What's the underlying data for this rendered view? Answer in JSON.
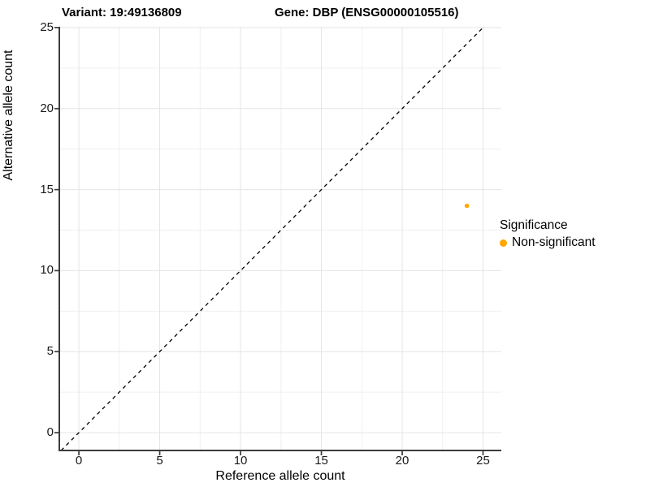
{
  "header": {
    "title_left": "Variant: 19:49136809",
    "title_right": "Gene: DBP (ENSG00000105516)"
  },
  "chart_data": {
    "type": "scatter",
    "title": "Variant: 19:49136809    Gene: DBP (ENSG00000105516)",
    "xlabel": "Reference allele count",
    "ylabel": "Alternative allele count",
    "xlim": [
      -1.21,
      26.13
    ],
    "ylim": [
      -1.1,
      25.05
    ],
    "xticks": [
      0,
      5,
      10,
      15,
      20,
      25
    ],
    "yticks": [
      0,
      5,
      10,
      15,
      20,
      25
    ],
    "xticks_minor": [
      2.5,
      7.5,
      12.5,
      17.5,
      22.5
    ],
    "yticks_minor": [
      2.5,
      7.5,
      12.5,
      17.5,
      22.5
    ],
    "grid": "on",
    "identity_line": {
      "type": "abline y=x",
      "style": "dashed",
      "color": "#000000"
    },
    "series": [
      {
        "name": "Non-significant",
        "color": "#FFA500",
        "points": [
          {
            "x": 24,
            "y": 14
          }
        ]
      }
    ],
    "legend": {
      "position": "right",
      "title": "Significance",
      "items": [
        {
          "label": "Non-significant",
          "color": "#FFA500"
        }
      ]
    },
    "colors": {
      "grid_major": "#e5e5e5",
      "grid_minor": "#f0f0f0",
      "axis_line": "#3c3c3c",
      "point": "#FFA500"
    }
  }
}
